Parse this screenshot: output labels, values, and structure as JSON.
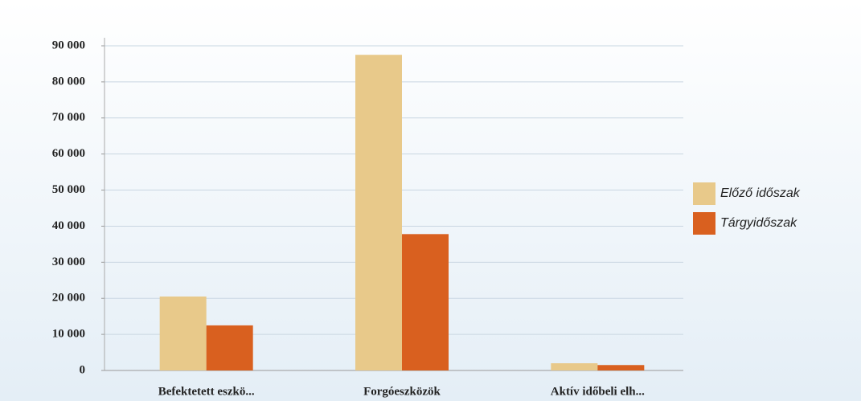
{
  "chart_data": {
    "type": "bar",
    "categories": [
      "Befektetett eszkö...",
      "Forgóeszközök",
      "Aktív időbeli elh..."
    ],
    "series": [
      {
        "name": "Előző időszak",
        "color": "#e8c98a",
        "values": [
          20500,
          87500,
          2000
        ]
      },
      {
        "name": "Tárgyidőszak",
        "color": "#d9601f",
        "values": [
          12500,
          37800,
          1500
        ]
      }
    ],
    "ylim": [
      0,
      90000
    ],
    "yticks": [
      0,
      {
        "value": 10000,
        "label": "10 000"
      },
      {
        "value": 20000,
        "label": "20 000"
      },
      {
        "value": 30000,
        "label": "30 000"
      },
      {
        "value": 40000,
        "label": "40 000"
      },
      {
        "value": 50000,
        "label": "50 000"
      },
      {
        "value": 60000,
        "label": "60 000"
      },
      {
        "value": 70000,
        "label": "70 000"
      },
      {
        "value": 80000,
        "label": "80 000"
      },
      {
        "value": 90000,
        "label": "90 000"
      }
    ],
    "grid": true,
    "legend": "right"
  }
}
